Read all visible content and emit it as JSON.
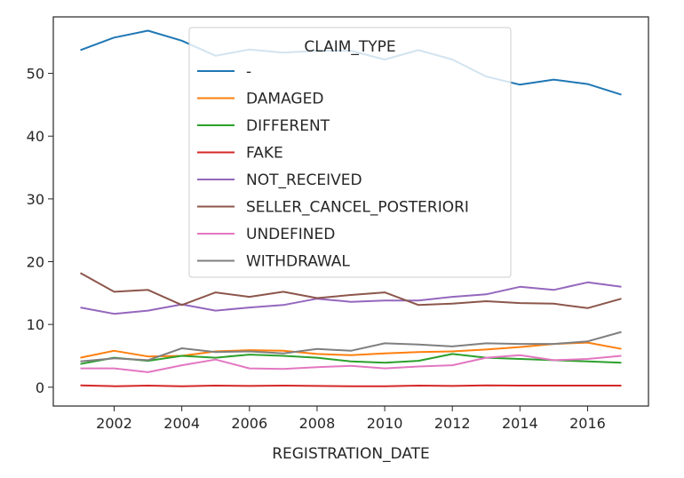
{
  "chart_data": {
    "type": "line",
    "title": "",
    "xlabel": "REGISTRATION_DATE",
    "ylabel": "",
    "xlim": [
      2000.2,
      2017.8
    ],
    "ylim": [
      -3,
      59
    ],
    "x_ticks": [
      2002,
      2004,
      2006,
      2008,
      2010,
      2012,
      2014,
      2016
    ],
    "y_ticks": [
      0,
      10,
      20,
      30,
      40,
      50
    ],
    "grid": false,
    "legend": {
      "title": "CLAIM_TYPE",
      "placement": "upper center"
    },
    "x": [
      2001,
      2002,
      2003,
      2004,
      2005,
      2006,
      2007,
      2008,
      2009,
      2010,
      2011,
      2012,
      2013,
      2014,
      2015,
      2016,
      2017
    ],
    "series": [
      {
        "name": "-",
        "color": "#1f77b4",
        "values": [
          53.7,
          55.7,
          56.8,
          55.2,
          52.8,
          53.8,
          53.3,
          53.6,
          53.6,
          52.2,
          53.7,
          52.2,
          49.5,
          48.2,
          49.0,
          48.3,
          46.6
        ]
      },
      {
        "name": "DAMAGED",
        "color": "#ff7f0e",
        "values": [
          4.7,
          5.8,
          4.9,
          5.0,
          5.7,
          5.9,
          5.8,
          5.3,
          5.1,
          5.4,
          5.6,
          5.7,
          6.0,
          6.4,
          6.9,
          7.1,
          6.1
        ]
      },
      {
        "name": "DIFFERENT",
        "color": "#2ca02c",
        "values": [
          3.7,
          4.7,
          4.2,
          5.0,
          4.7,
          5.2,
          5.0,
          4.7,
          4.1,
          3.9,
          4.2,
          5.3,
          4.7,
          4.5,
          4.3,
          4.1,
          3.9
        ]
      },
      {
        "name": "FAKE",
        "color": "#d62728",
        "values": [
          0.3,
          0.15,
          0.25,
          0.15,
          0.25,
          0.2,
          0.25,
          0.2,
          0.15,
          0.15,
          0.25,
          0.2,
          0.3,
          0.25,
          0.25,
          0.25,
          0.25
        ]
      },
      {
        "name": "NOT_RECEIVED",
        "color": "#9467bd",
        "values": [
          12.7,
          11.7,
          12.2,
          13.2,
          12.2,
          12.7,
          13.1,
          14.1,
          13.6,
          13.8,
          13.8,
          14.4,
          14.8,
          16.0,
          15.5,
          16.7,
          16.0
        ]
      },
      {
        "name": "SELLER_CANCEL_POSTERIORI",
        "color": "#8c564b",
        "values": [
          18.2,
          15.2,
          15.5,
          13.1,
          15.1,
          14.4,
          15.2,
          14.2,
          14.7,
          15.1,
          13.1,
          13.3,
          13.7,
          13.4,
          13.3,
          12.6,
          14.1
        ]
      },
      {
        "name": "UNDEFINED",
        "color": "#e377c2",
        "values": [
          3.0,
          3.0,
          2.4,
          3.5,
          4.4,
          3.0,
          2.9,
          3.2,
          3.4,
          3.0,
          3.3,
          3.5,
          4.7,
          5.1,
          4.3,
          4.5,
          5.0
        ]
      },
      {
        "name": "WITHDRAWAL",
        "color": "#7f7f7f",
        "values": [
          4.1,
          4.6,
          4.3,
          6.2,
          5.6,
          5.7,
          5.4,
          6.1,
          5.8,
          7.0,
          6.8,
          6.5,
          7.0,
          6.9,
          6.9,
          7.3,
          8.8
        ]
      }
    ]
  }
}
